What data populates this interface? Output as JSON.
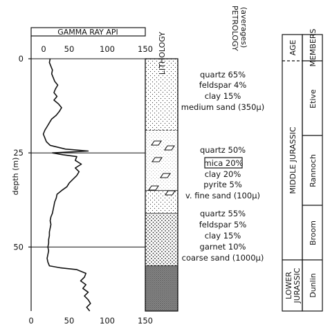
{
  "chart_data": {
    "type": "line",
    "title": "",
    "x_axis": {
      "label": "GAMMA RAY API",
      "range": [
        0,
        150
      ],
      "ticks_top": [
        "0",
        "50",
        "100",
        "150"
      ],
      "ticks_bottom": [
        "0",
        "50",
        "100",
        "150"
      ]
    },
    "y_axis": {
      "label": "depth (m)",
      "range": [
        0,
        67
      ],
      "ticks": [
        "0",
        "25",
        "50"
      ],
      "inverted": true
    },
    "gamma_ray": {
      "depth": [
        0,
        1,
        2,
        3,
        4,
        5,
        6,
        7,
        8,
        9,
        10,
        11,
        12,
        13,
        14,
        15,
        16,
        17,
        18,
        19,
        20,
        21,
        22,
        23,
        24,
        24.5,
        25,
        25.5,
        26,
        27,
        28,
        29,
        30,
        31,
        32,
        33,
        34,
        35,
        36,
        37,
        38,
        39,
        40,
        41,
        42,
        43,
        44,
        45,
        46,
        47,
        48,
        49,
        50,
        51,
        52,
        53,
        54,
        55,
        55.5,
        56,
        57,
        58,
        59,
        60,
        61,
        62,
        63,
        64,
        65,
        66,
        67
      ],
      "api": [
        25,
        24,
        26,
        28,
        27,
        29,
        31,
        35,
        32,
        30,
        34,
        30,
        36,
        40,
        37,
        33,
        27,
        24,
        21,
        18,
        16,
        18,
        20,
        25,
        45,
        75,
        28,
        42,
        60,
        58,
        66,
        58,
        63,
        60,
        55,
        50,
        47,
        40,
        34,
        33,
        31,
        30,
        29,
        28,
        26,
        25,
        26,
        25,
        24,
        24,
        23,
        23,
        22,
        23,
        22,
        21,
        22,
        24,
        38,
        60,
        72,
        70,
        65,
        72,
        68,
        75,
        70,
        75,
        78,
        73,
        77,
        72,
        78
      ]
    },
    "horizontal_lines_at_depth": [
      0,
      25,
      50
    ]
  },
  "headers": {
    "lithology": "LITHOLOGY",
    "petrology_1": "PETROLOGY",
    "petrology_2": "(averages)",
    "age": "AGE",
    "members": "MEMBERS"
  },
  "lithology_units": [
    {
      "top": 0,
      "bottom": 19,
      "pattern": "fine-sand-dots"
    },
    {
      "top": 19,
      "bottom": 35,
      "pattern": "very-fine-sand-mica"
    },
    {
      "top": 35,
      "bottom": 41,
      "pattern": "fine-sand-dots"
    },
    {
      "top": 41,
      "bottom": 55,
      "pattern": "coarse-sand-dots"
    },
    {
      "top": 55,
      "bottom": 67,
      "pattern": "shale"
    }
  ],
  "petrology": {
    "etive": [
      "quartz 65%",
      "feldspar 4%",
      "clay 15%",
      "medium sand (350μ)"
    ],
    "rannoch": [
      "quartz 50%",
      "mica 20%",
      "clay 20%",
      "pyrite 5%",
      "v. fine sand (100μ)"
    ],
    "broom": [
      "quartz 55%",
      "feldspar 5%",
      "clay 15%",
      "garnet 10%",
      "coarse sand (1000μ)"
    ]
  },
  "highlighted_constituent": "mica 20%",
  "ages": {
    "middle": "MIDDLE JURASSIC",
    "lower_1": "LOWER",
    "lower_2": "JURASSIC"
  },
  "members": {
    "etive": "Etive",
    "rannoch": "Rannoch",
    "broom": "Broom",
    "dunlin": "Dunlin"
  }
}
